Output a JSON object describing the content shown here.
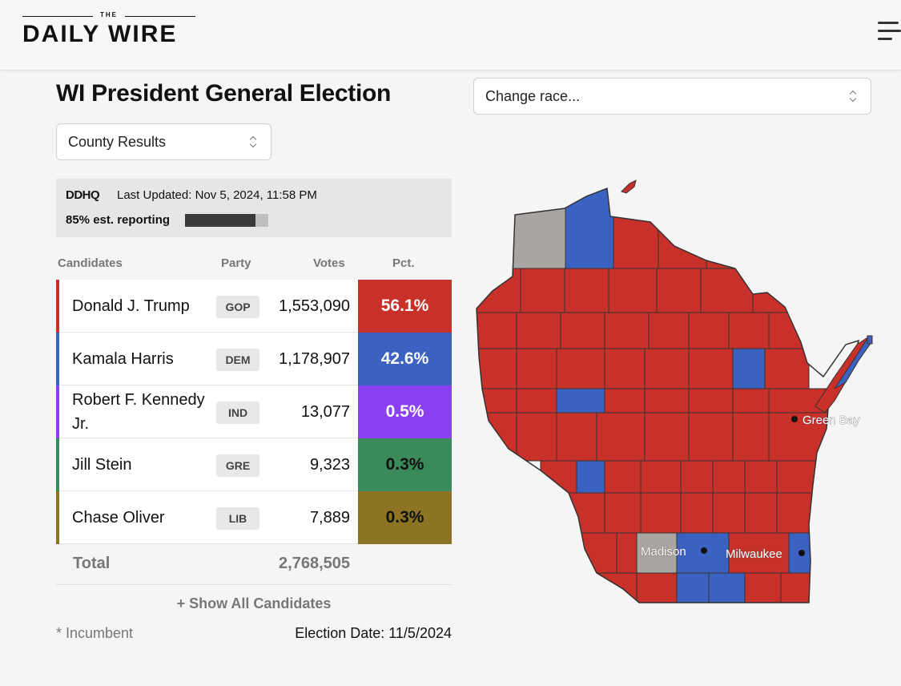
{
  "header": {
    "logo_the": "THE",
    "logo_main": "DAILY WIRE"
  },
  "title": "WI President General Election",
  "race_select": {
    "value": "Change race..."
  },
  "view_select": {
    "value": "County Results"
  },
  "info": {
    "source": "DDHQ",
    "updated": "Last Updated: Nov 5, 2024, 11:58 PM",
    "reporting": "85% est. reporting",
    "reporting_fraction": 0.85
  },
  "table": {
    "headers": {
      "candidates": "Candidates",
      "party": "Party",
      "votes": "Votes",
      "pct": "Pct."
    },
    "rows": [
      {
        "name": "Donald J. Trump",
        "party": "GOP",
        "votes": "1,553,090",
        "pct": "56.1%",
        "color": "#c8302a",
        "text_color": "#ffffff"
      },
      {
        "name": "Kamala Harris",
        "party": "DEM",
        "votes": "1,178,907",
        "pct": "42.6%",
        "color": "#3b62c0",
        "text_color": "#ffffff"
      },
      {
        "name": "Robert F. Kennedy Jr.",
        "party": "IND",
        "votes": "13,077",
        "pct": "0.5%",
        "color": "#8a3ff2",
        "text_color": "#ffffff"
      },
      {
        "name": "Jill Stein",
        "party": "GRE",
        "votes": "9,323",
        "pct": "0.3%",
        "color": "#3a8a5a",
        "text_color": "#111111"
      },
      {
        "name": "Chase Oliver",
        "party": "LIB",
        "votes": "7,889",
        "pct": "0.3%",
        "color": "#8c7424",
        "text_color": "#111111"
      }
    ],
    "total_label": "Total",
    "total_value": "2,768,505",
    "show_all": "+ Show All Candidates"
  },
  "footer": {
    "incumbent": "* Incumbent",
    "election_date": "Election Date: 11/5/2024"
  },
  "map": {
    "cities": [
      "Green Bay",
      "Madison",
      "Milwaukee"
    ],
    "colors": {
      "gop": "#c8302a",
      "dem": "#3b62c0",
      "none": "#a9a5a2",
      "border": "#333333"
    }
  }
}
